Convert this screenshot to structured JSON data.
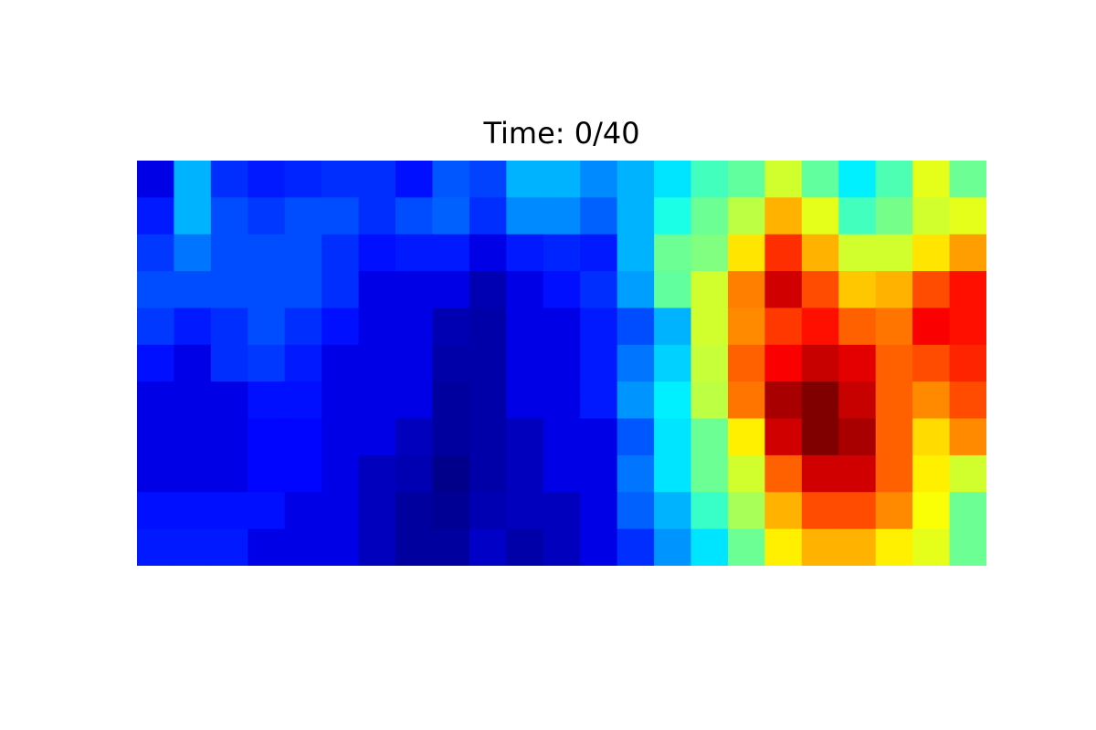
{
  "chart_data": {
    "type": "heatmap",
    "title": "Time: 0/40",
    "colormap": "jet",
    "axes_visible": false,
    "grid": false,
    "legend": "none",
    "value_range": [
      0,
      1
    ],
    "rows": 11,
    "cols": 23,
    "values": [
      [
        0.1,
        0.3,
        0.17,
        0.15,
        0.16,
        0.17,
        0.17,
        0.14,
        0.21,
        0.19,
        0.3,
        0.3,
        0.26,
        0.3,
        0.35,
        0.44,
        0.47,
        0.58,
        0.47,
        0.36,
        0.45,
        0.6,
        0.48
      ],
      [
        0.15,
        0.3,
        0.2,
        0.18,
        0.2,
        0.2,
        0.17,
        0.2,
        0.22,
        0.17,
        0.26,
        0.26,
        0.22,
        0.3,
        0.4,
        0.48,
        0.56,
        0.7,
        0.6,
        0.44,
        0.49,
        0.58,
        0.6
      ],
      [
        0.18,
        0.24,
        0.2,
        0.2,
        0.2,
        0.17,
        0.14,
        0.15,
        0.15,
        0.1,
        0.15,
        0.16,
        0.15,
        0.3,
        0.48,
        0.5,
        0.65,
        0.83,
        0.7,
        0.58,
        0.58,
        0.65,
        0.72
      ],
      [
        0.2,
        0.2,
        0.2,
        0.2,
        0.2,
        0.17,
        0.1,
        0.1,
        0.1,
        0.05,
        0.1,
        0.14,
        0.17,
        0.28,
        0.47,
        0.58,
        0.75,
        0.92,
        0.8,
        0.68,
        0.7,
        0.8,
        0.86
      ],
      [
        0.18,
        0.15,
        0.17,
        0.2,
        0.17,
        0.14,
        0.1,
        0.1,
        0.05,
        0.04,
        0.1,
        0.1,
        0.15,
        0.2,
        0.3,
        0.58,
        0.74,
        0.82,
        0.86,
        0.78,
        0.76,
        0.88,
        0.86
      ],
      [
        0.14,
        0.1,
        0.17,
        0.18,
        0.15,
        0.1,
        0.1,
        0.1,
        0.04,
        0.04,
        0.1,
        0.1,
        0.15,
        0.24,
        0.33,
        0.57,
        0.78,
        0.88,
        0.93,
        0.9,
        0.78,
        0.8,
        0.84
      ],
      [
        0.1,
        0.1,
        0.1,
        0.14,
        0.14,
        0.1,
        0.1,
        0.1,
        0.03,
        0.04,
        0.1,
        0.1,
        0.15,
        0.27,
        0.36,
        0.56,
        0.76,
        0.96,
        1.0,
        0.93,
        0.78,
        0.74,
        0.8
      ],
      [
        0.1,
        0.1,
        0.1,
        0.13,
        0.13,
        0.1,
        0.1,
        0.06,
        0.03,
        0.04,
        0.06,
        0.1,
        0.1,
        0.21,
        0.35,
        0.48,
        0.64,
        0.92,
        1.0,
        0.96,
        0.78,
        0.66,
        0.74
      ],
      [
        0.1,
        0.1,
        0.1,
        0.13,
        0.13,
        0.1,
        0.06,
        0.05,
        0.01,
        0.04,
        0.06,
        0.1,
        0.1,
        0.24,
        0.35,
        0.48,
        0.58,
        0.78,
        0.92,
        0.92,
        0.78,
        0.64,
        0.58
      ],
      [
        0.14,
        0.14,
        0.14,
        0.14,
        0.1,
        0.1,
        0.06,
        0.03,
        0.02,
        0.05,
        0.06,
        0.06,
        0.1,
        0.22,
        0.3,
        0.43,
        0.54,
        0.7,
        0.8,
        0.8,
        0.74,
        0.62,
        0.48
      ],
      [
        0.15,
        0.15,
        0.15,
        0.1,
        0.1,
        0.1,
        0.06,
        0.03,
        0.03,
        0.07,
        0.04,
        0.06,
        0.1,
        0.17,
        0.27,
        0.35,
        0.48,
        0.64,
        0.7,
        0.7,
        0.64,
        0.6,
        0.48
      ]
    ]
  }
}
